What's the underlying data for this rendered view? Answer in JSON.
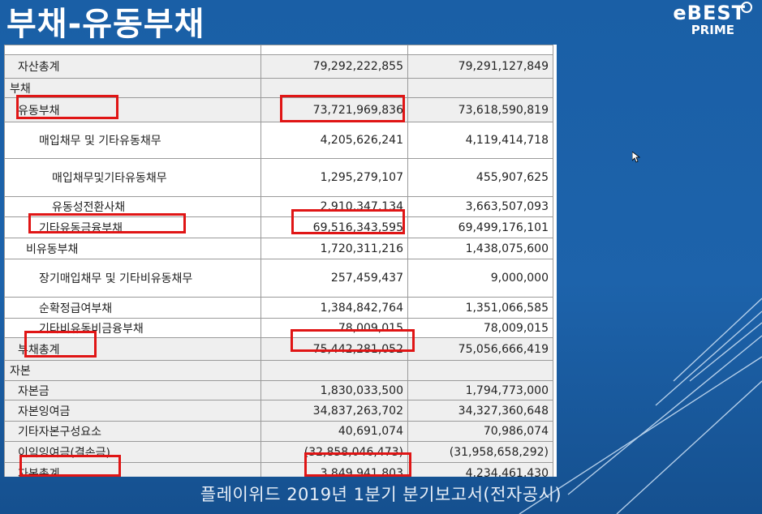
{
  "slide": {
    "title": "부채-유동부채",
    "logo": {
      "main": "eBEST",
      "sub": "PRIME"
    },
    "footer": "플레이위드 2019년 1분기 분기보고서(전자공시)"
  },
  "table": {
    "rows": [
      {
        "label": "자산총계",
        "v1": "79,292,222,855",
        "v2": "79,291,127,849"
      },
      {
        "label": "부채",
        "v1": "",
        "v2": ""
      },
      {
        "label": "유동부채",
        "v1": "73,721,969,836",
        "v2": "73,618,590,819"
      },
      {
        "label": "매입채무 및 기타유동채무",
        "v1": "4,205,626,241",
        "v2": "4,119,414,718"
      },
      {
        "label": "매입채무및기타유동채무",
        "v1": "1,295,279,107",
        "v2": "455,907,625"
      },
      {
        "label": "유동성전환사채",
        "v1": "2,910,347,134",
        "v2": "3,663,507,093"
      },
      {
        "label": "기타유동금융부채",
        "v1": "69,516,343,595",
        "v2": "69,499,176,101"
      },
      {
        "label": "비유동부채",
        "v1": "1,720,311,216",
        "v2": "1,438,075,600"
      },
      {
        "label": "장기매입채무 및 기타비유동채무",
        "v1": "257,459,437",
        "v2": "9,000,000"
      },
      {
        "label": "순확정급여부채",
        "v1": "1,384,842,764",
        "v2": "1,351,066,585"
      },
      {
        "label": "기타비유동비금융부채",
        "v1": "78,009,015",
        "v2": "78,009,015"
      },
      {
        "label": "부채총계",
        "v1": "75,442,281,052",
        "v2": "75,056,666,419"
      },
      {
        "label": "자본",
        "v1": "",
        "v2": ""
      },
      {
        "label": "자본금",
        "v1": "1,830,033,500",
        "v2": "1,794,773,000"
      },
      {
        "label": "자본잉여금",
        "v1": "34,837,263,702",
        "v2": "34,327,360,648"
      },
      {
        "label": "기타자본구성요소",
        "v1": "40,691,074",
        "v2": "70,986,074"
      },
      {
        "label": "이익잉여금(결손금)",
        "v1": "(32,858,046,473)",
        "v2": "(31,958,658,292)"
      },
      {
        "label": "자본총계",
        "v1": "3,849,941,803",
        "v2": "4,234,461,430"
      }
    ]
  },
  "colors": {
    "background": "#1d63ab",
    "highlight": "#e01515",
    "row_shade": "#efefef"
  }
}
